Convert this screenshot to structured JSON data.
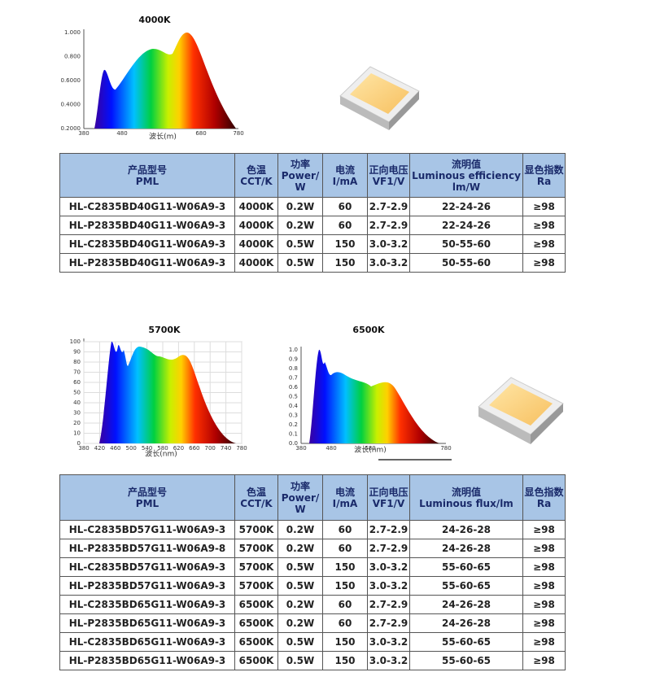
{
  "spectra": [
    {
      "title": "4000K",
      "y_labels": [
        "1.000",
        "0.800",
        "0.6000",
        "0.4000",
        "0.2000"
      ],
      "x_labels": [
        "380",
        "480",
        "680",
        "780"
      ],
      "x_label": "波长(m)"
    },
    {
      "title": "5700K",
      "y_labels": [
        "100",
        "90",
        "80",
        "70",
        "60",
        "50",
        "40",
        "30",
        "20",
        "10",
        "0"
      ],
      "x_labels": [
        "380",
        "420",
        "460",
        "500",
        "540",
        "580",
        "620",
        "660",
        "700",
        "740",
        "780"
      ],
      "x_label": "波长(nm)"
    },
    {
      "title": "6500K",
      "y_labels": [
        "1.0",
        "0.9",
        "0.8",
        "0.7",
        "0.6",
        "0.5",
        "0.4",
        "0.3",
        "0.2",
        "0.1",
        "0.0"
      ],
      "x_labels": [
        "380",
        "480",
        "580",
        "780"
      ],
      "x_label": "波长(nm)"
    }
  ],
  "tables": [
    {
      "header": [
        [
          "产品型号",
          "PML"
        ],
        [
          "色温",
          "CCT/K"
        ],
        [
          "功率",
          "Power/",
          "W"
        ],
        [
          "电流",
          "I/mA"
        ],
        [
          "正向电压",
          "VF1/V"
        ],
        [
          "流明值",
          "Luminous efficiency",
          "lm/W"
        ],
        [
          "显色指数",
          "Ra"
        ]
      ],
      "rows": [
        [
          "HL-C2835BD40G11-W06A9-3",
          "4000K",
          "0.2W",
          "60",
          "2.7-2.9",
          "22-24-26",
          "≥98"
        ],
        [
          "HL-P2835BD40G11-W06A9-3",
          "4000K",
          "0.2W",
          "60",
          "2.7-2.9",
          "22-24-26",
          "≥98"
        ],
        [
          "HL-C2835BD40G11-W06A9-3",
          "4000K",
          "0.5W",
          "150",
          "3.0-3.2",
          "50-55-60",
          "≥98"
        ],
        [
          "HL-P2835BD40G11-W06A9-3",
          "4000K",
          "0.5W",
          "150",
          "3.0-3.2",
          "50-55-60",
          "≥98"
        ]
      ]
    },
    {
      "header": [
        [
          "产品型号",
          "PML"
        ],
        [
          "色温",
          "CCT/K"
        ],
        [
          "功率",
          "Power/",
          "W"
        ],
        [
          "电流",
          "I/mA"
        ],
        [
          "正向电压",
          "VF1/V"
        ],
        [
          "流明值",
          "Luminous flux/lm"
        ],
        [
          "显色指数",
          "Ra"
        ]
      ],
      "rows": [
        [
          "HL-C2835BD57G11-W06A9-3",
          "5700K",
          "0.2W",
          "60",
          "2.7-2.9",
          "24-26-28",
          "≥98"
        ],
        [
          "HL-P2835BD57G11-W06A9-8",
          "5700K",
          "0.2W",
          "60",
          "2.7-2.9",
          "24-26-28",
          "≥98"
        ],
        [
          "HL-C2835BD57G11-W06A9-3",
          "5700K",
          "0.5W",
          "150",
          "3.0-3.2",
          "55-60-65",
          "≥98"
        ],
        [
          "HL-P2835BD57G11-W06A9-3",
          "5700K",
          "0.5W",
          "150",
          "3.0-3.2",
          "55-60-65",
          "≥98"
        ],
        [
          "HL-C2835BD65G11-W06A9-3",
          "6500K",
          "0.2W",
          "60",
          "2.7-2.9",
          "24-26-28",
          "≥98"
        ],
        [
          "HL-P2835BD65G11-W06A9-3",
          "6500K",
          "0.2W",
          "60",
          "2.7-2.9",
          "24-26-28",
          "≥98"
        ],
        [
          "HL-C2835BD65G11-W06A9-3",
          "6500K",
          "0.5W",
          "150",
          "3.0-3.2",
          "55-60-65",
          "≥98"
        ],
        [
          "HL-P2835BD65G11-W06A9-3",
          "6500K",
          "0.5W",
          "150",
          "3.0-3.2",
          "55-60-65",
          "≥98"
        ]
      ]
    }
  ]
}
